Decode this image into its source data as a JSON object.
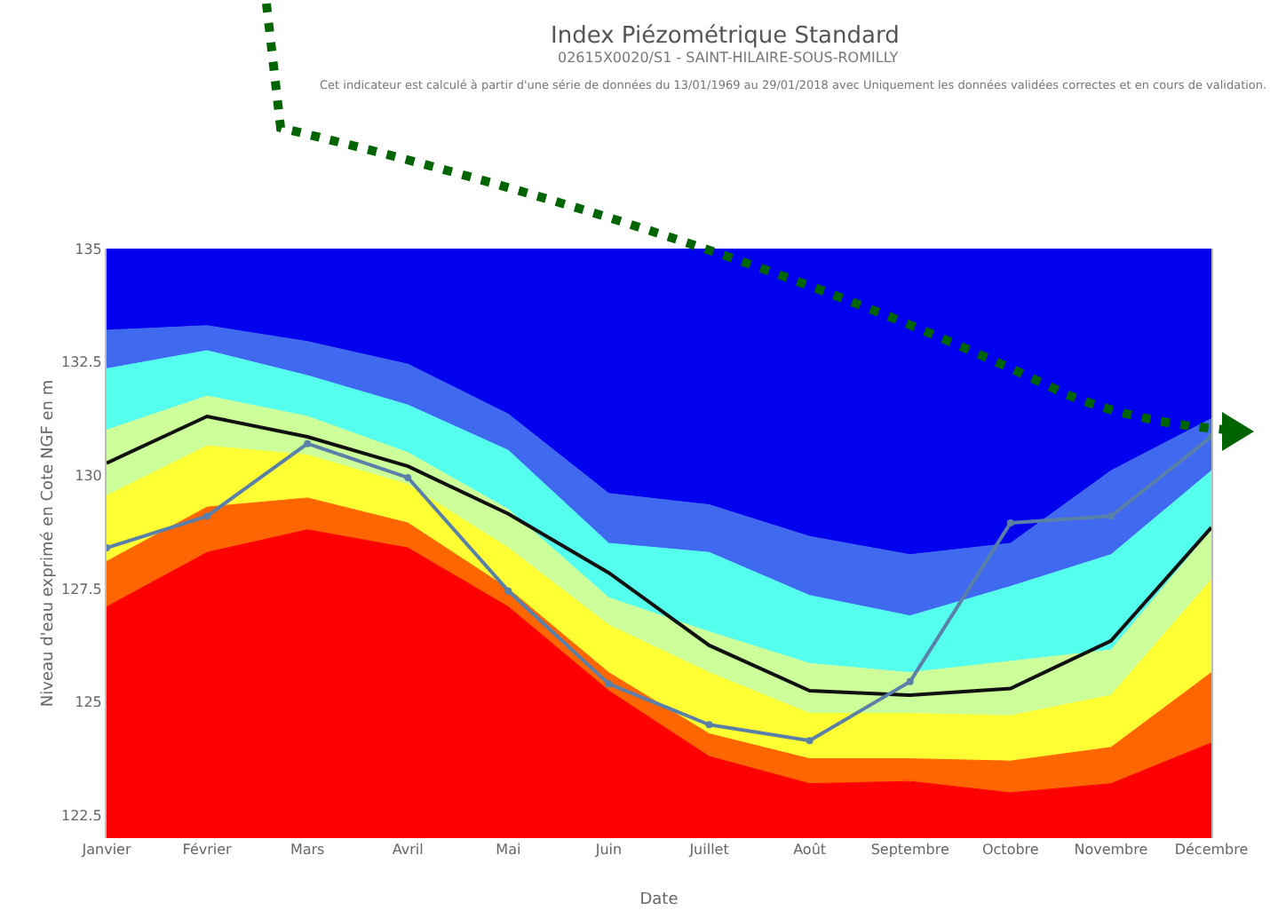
{
  "chart_data": {
    "type": "area",
    "title": "Index Piézométrique Standard",
    "subtitle": "02615X0020/S1 - SAINT-HILAIRE-SOUS-ROMILLY",
    "annotations": [
      "Cet indicateur est calculé à partir d'une série de données du 13/01/1969 au 29/01/2018 avec Uniquement les données validées correctes et en cours de validation."
    ],
    "xlabel": "Date",
    "ylabel": "Niveau d'eau exprimé en Cote NGF en m",
    "categories": [
      "Janvier",
      "Février",
      "Mars",
      "Avril",
      "Mai",
      "Juin",
      "Juillet",
      "Août",
      "Septembre",
      "Octobre",
      "Novembre",
      "Décembre"
    ],
    "ylim": [
      122,
      135
    ],
    "yticks": [
      122.5,
      125,
      127.5,
      130,
      132.5,
      135
    ],
    "series": [
      {
        "color": "#ff0000",
        "values": [
          127.1,
          128.3,
          128.8,
          128.4,
          127.1,
          125.25,
          123.8,
          123.2,
          123.25,
          123.0,
          123.2,
          124.1
        ]
      },
      {
        "color": "#ff6600",
        "values": [
          128.1,
          129.3,
          129.5,
          128.95,
          127.5,
          125.65,
          124.3,
          123.75,
          123.75,
          123.7,
          124.0,
          125.65
        ]
      },
      {
        "color": "#ffff33",
        "values": [
          129.55,
          130.65,
          130.45,
          129.8,
          128.4,
          126.7,
          125.65,
          124.75,
          124.75,
          124.7,
          125.15,
          127.7
        ]
      },
      {
        "color": "#ccff99",
        "values": [
          131.0,
          131.75,
          131.3,
          130.5,
          129.25,
          127.3,
          126.55,
          125.85,
          125.65,
          125.9,
          126.15,
          128.8
        ]
      },
      {
        "color": "#55ffee",
        "values": [
          132.35,
          132.75,
          132.2,
          131.55,
          130.55,
          128.5,
          128.3,
          127.35,
          126.9,
          127.55,
          128.25,
          130.1
        ]
      },
      {
        "color": "#3f6af0",
        "values": [
          133.2,
          133.3,
          132.95,
          132.45,
          131.35,
          129.6,
          129.35,
          128.65,
          128.25,
          128.5,
          130.1,
          131.25
        ]
      },
      {
        "color": "#0000ee",
        "values": [
          135,
          135,
          135,
          135,
          135,
          135,
          135,
          135,
          135,
          135,
          135,
          135
        ]
      },
      {
        "type": "line",
        "color": "#111111",
        "marker": "none",
        "values": [
          130.27,
          131.3,
          130.85,
          130.2,
          129.15,
          127.85,
          126.25,
          125.25,
          125.15,
          125.3,
          126.35,
          128.85
        ]
      },
      {
        "type": "line",
        "color": "#5a7fa8",
        "marker": "circle",
        "values": [
          128.4,
          129.1,
          130.7,
          129.95,
          127.45,
          125.4,
          124.5,
          124.15,
          125.45,
          128.95,
          129.1,
          130.85
        ]
      }
    ]
  }
}
